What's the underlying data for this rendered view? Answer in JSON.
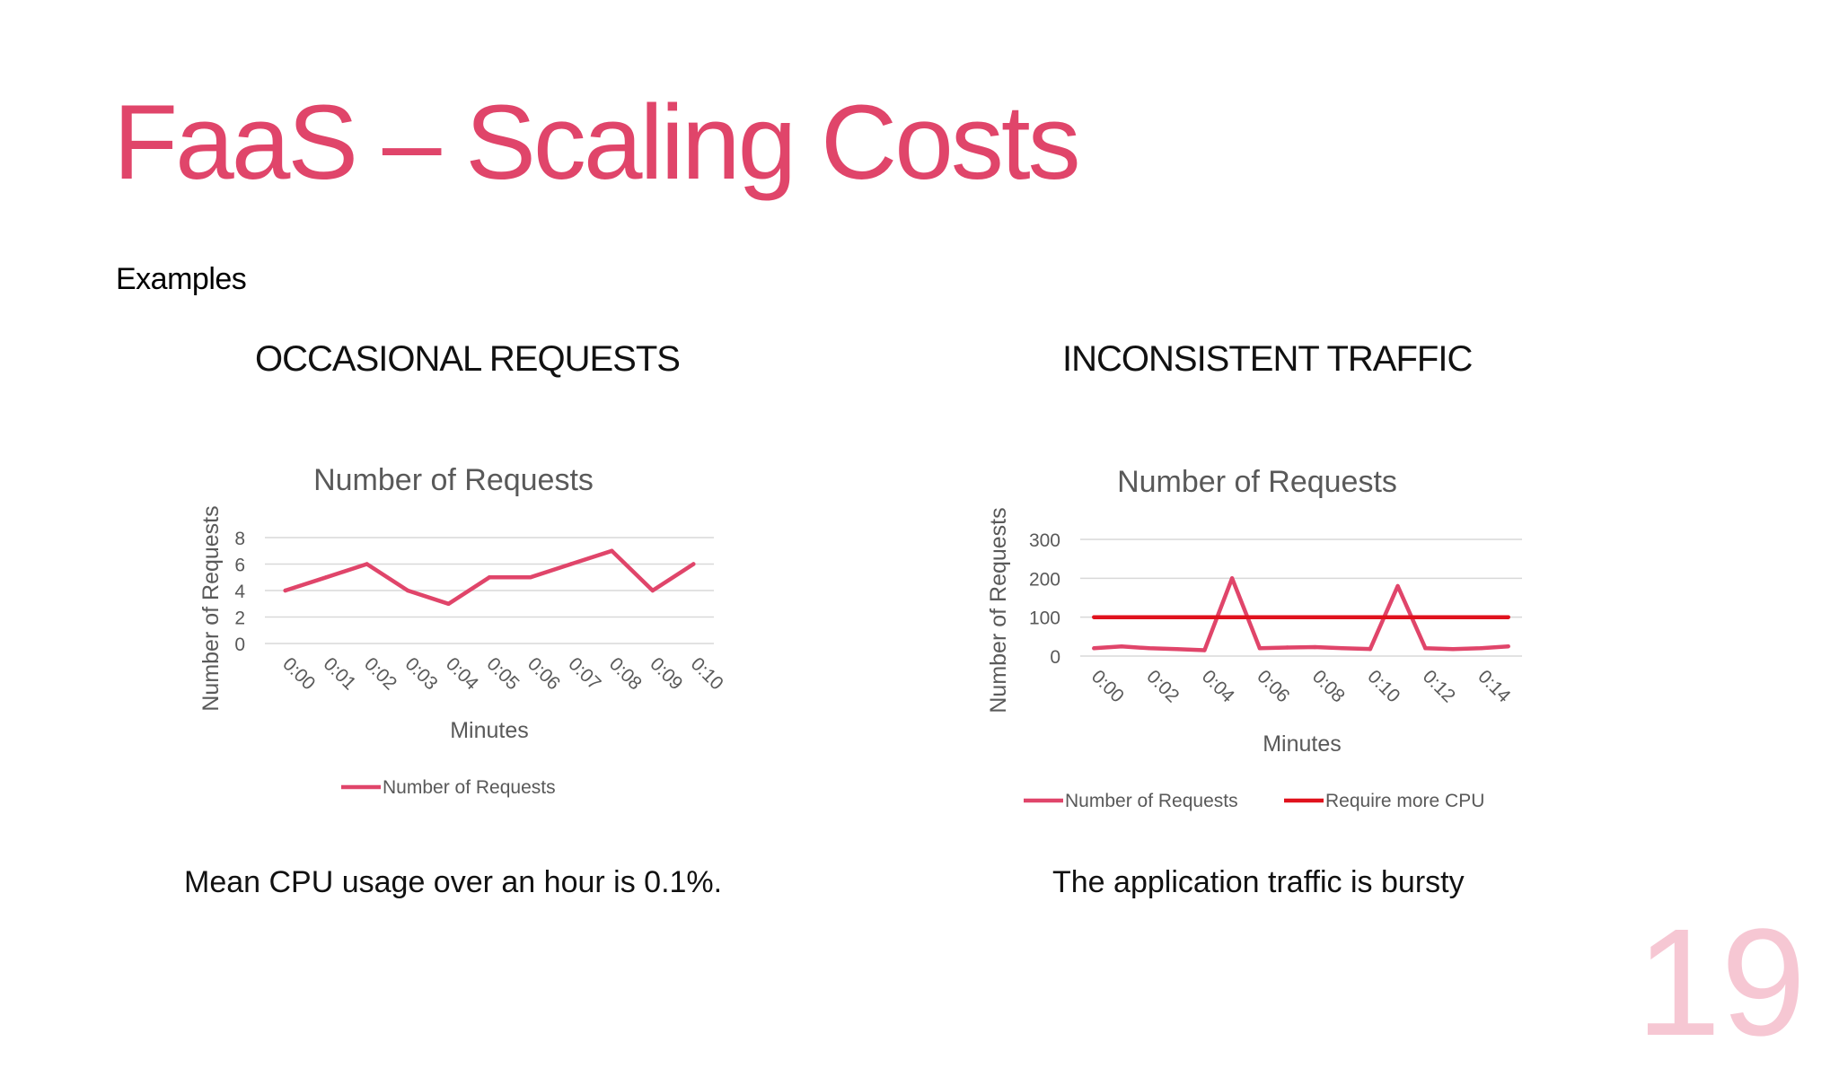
{
  "slide": {
    "title": "FaaS – Scaling Costs",
    "subtitle": "Examples",
    "page_number": "19",
    "colors": {
      "accent": "#e0456a",
      "page_number": "#f6c7d3",
      "series_requests": "#e0456a",
      "series_cpu": "#e0121d",
      "gridline": "#d9d9d9",
      "axis_text": "#595959"
    }
  },
  "sections": [
    {
      "heading": "OCCASIONAL REQUESTS",
      "caption": "Mean CPU usage over an hour is 0.1%."
    },
    {
      "heading": "INCONSISTENT TRAFFIC",
      "caption": "The application traffic is bursty"
    }
  ],
  "chart_data": [
    {
      "type": "line",
      "title": "Number of Requests",
      "xlabel": "Minutes",
      "ylabel": "Number of Requests",
      "ylim": [
        0,
        8
      ],
      "yticks": [
        0,
        2,
        4,
        6,
        8
      ],
      "grid": true,
      "legend": "bottom",
      "categories": [
        "0:00",
        "0:01",
        "0:02",
        "0:03",
        "0:04",
        "0:05",
        "0:06",
        "0:07",
        "0:08",
        "0:09",
        "0:10"
      ],
      "x_tick_labels": [
        "0:00",
        "0:01",
        "0:02",
        "0:03",
        "0:04",
        "0:05",
        "0:06",
        "0:07",
        "0:08",
        "0:09",
        "0:10"
      ],
      "series": [
        {
          "name": "Number of Requests",
          "color": "#e0456a",
          "values": [
            4,
            5,
            6,
            4,
            3,
            5,
            5,
            6,
            7,
            4,
            6
          ]
        }
      ]
    },
    {
      "type": "line",
      "title": "Number of Requests",
      "xlabel": "Minutes",
      "ylabel": "Number of Requests",
      "ylim": [
        0,
        300
      ],
      "yticks": [
        0,
        100,
        200,
        300
      ],
      "grid": true,
      "legend": "bottom",
      "categories": [
        "0:00",
        "0:01",
        "0:02",
        "0:03",
        "0:04",
        "0:05",
        "0:06",
        "0:07",
        "0:08",
        "0:09",
        "0:10",
        "0:11",
        "0:12",
        "0:13",
        "0:14",
        "0:15"
      ],
      "x_tick_labels": [
        "0:00",
        "0:02",
        "0:04",
        "0:06",
        "0:08",
        "0:10",
        "0:12",
        "0:14"
      ],
      "series": [
        {
          "name": "Number of Requests",
          "color": "#e0456a",
          "values": [
            20,
            25,
            20,
            18,
            15,
            200,
            20,
            22,
            23,
            20,
            18,
            180,
            20,
            18,
            20,
            25
          ]
        },
        {
          "name": "Require more CPU",
          "color": "#e0121d",
          "values": [
            100,
            100,
            100,
            100,
            100,
            100,
            100,
            100,
            100,
            100,
            100,
            100,
            100,
            100,
            100,
            100
          ]
        }
      ]
    }
  ]
}
